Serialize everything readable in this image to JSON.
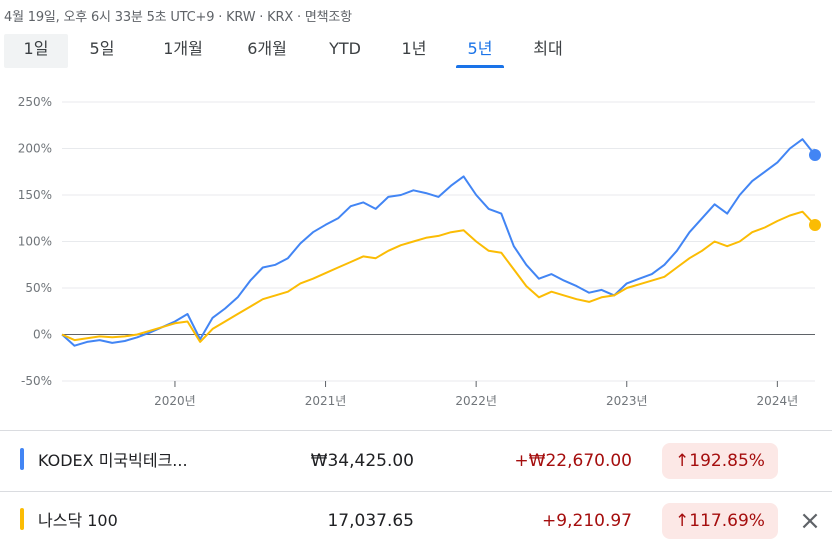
{
  "status_line": "4월 19일, 오후 6시 33분 5초 UTC+9 · KRW · KRX · 면책조항",
  "tabs": [
    {
      "label": "1일"
    },
    {
      "label": "5일"
    },
    {
      "label": "1개월"
    },
    {
      "label": "6개월"
    },
    {
      "label": "YTD"
    },
    {
      "label": "1년"
    },
    {
      "label": "5년"
    },
    {
      "label": "최대"
    }
  ],
  "active_tab": "5년",
  "colors": {
    "series_1": "#4285f4",
    "series_2": "#fbbc04",
    "accent": "#1a73e8",
    "positive_text": "#a50e0e",
    "positive_bg": "#fce8e6"
  },
  "rows": [
    {
      "name": "KODEX 미국빅테크...",
      "price": "₩34,425.00",
      "change": "+₩22,670.00",
      "pct": "192.85%",
      "arrow": "↑"
    },
    {
      "name": "나스닥 100",
      "price": "17,037.65",
      "change": "+9,210.97",
      "pct": "117.69%",
      "arrow": "↑",
      "close_icon": "×"
    }
  ],
  "chart_data": {
    "type": "line",
    "y_unit": "%",
    "ylim": [
      -50,
      250
    ],
    "yticks": [
      "250%",
      "200%",
      "150%",
      "100%",
      "50%",
      "0%",
      "-50%"
    ],
    "xticks": [
      "2020년",
      "2021년",
      "2022년",
      "2023년",
      "2024년"
    ],
    "baseline": 0,
    "grid": true,
    "series": [
      {
        "name": "KODEX 미국빅테크...",
        "color": "#4285f4",
        "x": [
          "2019-04",
          "2019-05",
          "2019-06",
          "2019-07",
          "2019-08",
          "2019-09",
          "2019-10",
          "2019-11",
          "2019-12",
          "2020-01",
          "2020-02",
          "2020-03",
          "2020-04",
          "2020-05",
          "2020-06",
          "2020-07",
          "2020-08",
          "2020-09",
          "2020-10",
          "2020-11",
          "2020-12",
          "2021-01",
          "2021-02",
          "2021-03",
          "2021-04",
          "2021-05",
          "2021-06",
          "2021-07",
          "2021-08",
          "2021-09",
          "2021-10",
          "2021-11",
          "2021-12",
          "2022-01",
          "2022-02",
          "2022-03",
          "2022-04",
          "2022-05",
          "2022-06",
          "2022-07",
          "2022-08",
          "2022-09",
          "2022-10",
          "2022-11",
          "2022-12",
          "2023-01",
          "2023-02",
          "2023-03",
          "2023-04",
          "2023-05",
          "2023-06",
          "2023-07",
          "2023-08",
          "2023-09",
          "2023-10",
          "2023-11",
          "2023-12",
          "2024-01",
          "2024-02",
          "2024-03",
          "2024-04"
        ],
        "values": [
          0,
          -12,
          -8,
          -6,
          -9,
          -7,
          -3,
          2,
          8,
          14,
          22,
          -5,
          18,
          28,
          40,
          58,
          72,
          75,
          82,
          98,
          110,
          118,
          125,
          138,
          142,
          135,
          148,
          150,
          155,
          152,
          148,
          160,
          170,
          150,
          135,
          130,
          95,
          75,
          60,
          65,
          58,
          52,
          45,
          48,
          42,
          55,
          60,
          65,
          75,
          90,
          110,
          125,
          140,
          130,
          150,
          165,
          175,
          185,
          200,
          210,
          193
        ]
      },
      {
        "name": "나스닥 100",
        "color": "#fbbc04",
        "x": [
          "2019-04",
          "2019-05",
          "2019-06",
          "2019-07",
          "2019-08",
          "2019-09",
          "2019-10",
          "2019-11",
          "2019-12",
          "2020-01",
          "2020-02",
          "2020-03",
          "2020-04",
          "2020-05",
          "2020-06",
          "2020-07",
          "2020-08",
          "2020-09",
          "2020-10",
          "2020-11",
          "2020-12",
          "2021-01",
          "2021-02",
          "2021-03",
          "2021-04",
          "2021-05",
          "2021-06",
          "2021-07",
          "2021-08",
          "2021-09",
          "2021-10",
          "2021-11",
          "2021-12",
          "2022-01",
          "2022-02",
          "2022-03",
          "2022-04",
          "2022-05",
          "2022-06",
          "2022-07",
          "2022-08",
          "2022-09",
          "2022-10",
          "2022-11",
          "2022-12",
          "2023-01",
          "2023-02",
          "2023-03",
          "2023-04",
          "2023-05",
          "2023-06",
          "2023-07",
          "2023-08",
          "2023-09",
          "2023-10",
          "2023-11",
          "2023-12",
          "2024-01",
          "2024-02",
          "2024-03",
          "2024-04"
        ],
        "values": [
          0,
          -6,
          -4,
          -2,
          -3,
          -2,
          0,
          4,
          8,
          12,
          14,
          -8,
          6,
          14,
          22,
          30,
          38,
          42,
          46,
          55,
          60,
          66,
          72,
          78,
          84,
          82,
          90,
          96,
          100,
          104,
          106,
          110,
          112,
          100,
          90,
          88,
          70,
          52,
          40,
          46,
          42,
          38,
          35,
          40,
          42,
          50,
          54,
          58,
          62,
          72,
          82,
          90,
          100,
          95,
          100,
          110,
          115,
          122,
          128,
          132,
          117.69
        ]
      }
    ]
  }
}
